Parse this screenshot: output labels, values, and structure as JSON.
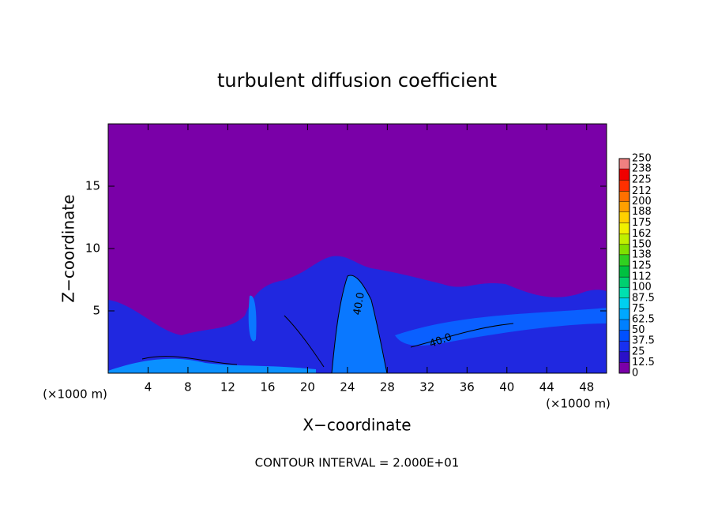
{
  "chart_data": {
    "type": "contour",
    "title": "turbulent diffusion coefficient",
    "xlabel": "X−coordinate",
    "ylabel": "Z−coordinate",
    "x_unit_label": "(×1000 m)",
    "footnote": "CONTOUR INTERVAL = 2.000E+01",
    "xlim": [
      0,
      50
    ],
    "xticks": [
      4,
      8,
      12,
      16,
      20,
      24,
      28,
      32,
      36,
      40,
      44,
      48
    ],
    "ylim": [
      0,
      20
    ],
    "yticks": [
      5,
      10,
      15
    ],
    "contour_labels": [
      "40.0",
      "40.0"
    ],
    "colorbar": {
      "ticks": [
        0,
        12.5,
        25,
        37.5,
        50,
        62.5,
        75,
        87.5,
        100,
        112,
        125,
        138,
        150,
        162,
        175,
        188,
        200,
        212,
        225,
        238,
        250
      ],
      "colors": [
        "#7a00a8",
        "#2a10c8",
        "#1830f0",
        "#0050ff",
        "#0080ff",
        "#00a8ff",
        "#00d0f0",
        "#00e0b0",
        "#00d070",
        "#00c040",
        "#30d020",
        "#80e000",
        "#c0f000",
        "#f0f000",
        "#ffd000",
        "#ffa000",
        "#ff7000",
        "#ff3000",
        "#f00000",
        "#f08080"
      ]
    }
  }
}
